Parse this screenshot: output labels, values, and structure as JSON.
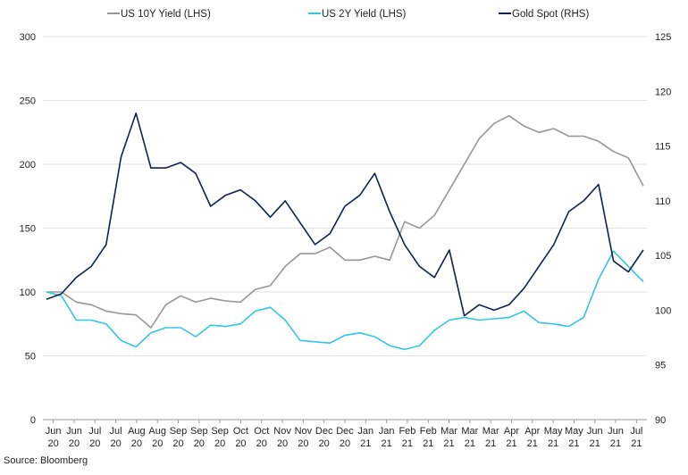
{
  "chart_data": {
    "type": "line",
    "title": "",
    "source": "Source: Bloomberg",
    "y_left": {
      "min": 0,
      "max": 300,
      "ticks": [
        0,
        50,
        100,
        150,
        200,
        250,
        300
      ]
    },
    "y_right": {
      "min": 90,
      "max": 125,
      "ticks": [
        90,
        95,
        100,
        105,
        110,
        115,
        120,
        125
      ]
    },
    "x_ticks": [
      [
        "Jun",
        "20"
      ],
      [
        "Jun",
        "20"
      ],
      [
        "Jul",
        "20"
      ],
      [
        "Jul",
        "20"
      ],
      [
        "Aug",
        "20"
      ],
      [
        "Aug",
        "20"
      ],
      [
        "Sep",
        "20"
      ],
      [
        "Sep",
        "20"
      ],
      [
        "Sep",
        "20"
      ],
      [
        "Oct",
        "20"
      ],
      [
        "Oct",
        "20"
      ],
      [
        "Nov",
        "20"
      ],
      [
        "Nov",
        "20"
      ],
      [
        "Dec",
        "20"
      ],
      [
        "Dec",
        "20"
      ],
      [
        "Jan",
        "21"
      ],
      [
        "Jan",
        "21"
      ],
      [
        "Feb",
        "21"
      ],
      [
        "Feb",
        "21"
      ],
      [
        "Mar",
        "21"
      ],
      [
        "Mar",
        "21"
      ],
      [
        "Mar",
        "21"
      ],
      [
        "Apr",
        "21"
      ],
      [
        "Apr",
        "21"
      ],
      [
        "May",
        "21"
      ],
      [
        "May",
        "21"
      ],
      [
        "Jun",
        "21"
      ],
      [
        "Jun",
        "21"
      ],
      [
        "Jul",
        "21"
      ]
    ],
    "series": [
      {
        "name": "US 10Y Yield (LHS)",
        "axis": "left",
        "color": "#969696",
        "values": [
          100,
          100,
          92,
          90,
          85,
          83,
          82,
          72,
          90,
          97,
          92,
          95,
          93,
          92,
          102,
          105,
          120,
          130,
          130,
          135,
          125,
          125,
          128,
          125,
          155,
          150,
          160,
          180,
          200,
          220,
          232,
          238,
          230,
          225,
          228,
          222,
          222,
          218,
          210,
          205,
          183
        ]
      },
      {
        "name": "US 2Y Yield (LHS)",
        "axis": "left",
        "color": "#33c5e6",
        "values": [
          100,
          97,
          78,
          78,
          75,
          62,
          57,
          68,
          72,
          72,
          65,
          74,
          73,
          75,
          85,
          88,
          78,
          62,
          61,
          60,
          66,
          68,
          65,
          58,
          55,
          58,
          70,
          78,
          80,
          78,
          79,
          80,
          85,
          76,
          75,
          73,
          80,
          110,
          132,
          120,
          108
        ]
      },
      {
        "name": "Gold Spot (RHS)",
        "axis": "right",
        "color": "#0d2250",
        "values": [
          101,
          101.5,
          103,
          104,
          106,
          114,
          118,
          113,
          113,
          113.5,
          112.5,
          109.5,
          110.5,
          111,
          110,
          108.5,
          110,
          108,
          106,
          107,
          109.5,
          110.5,
          112.5,
          109,
          106,
          104,
          103,
          105.5,
          99.5,
          100.5,
          100,
          100.5,
          102,
          104,
          106,
          109,
          110,
          111.5,
          104.5,
          103.5,
          105.5
        ]
      }
    ]
  }
}
